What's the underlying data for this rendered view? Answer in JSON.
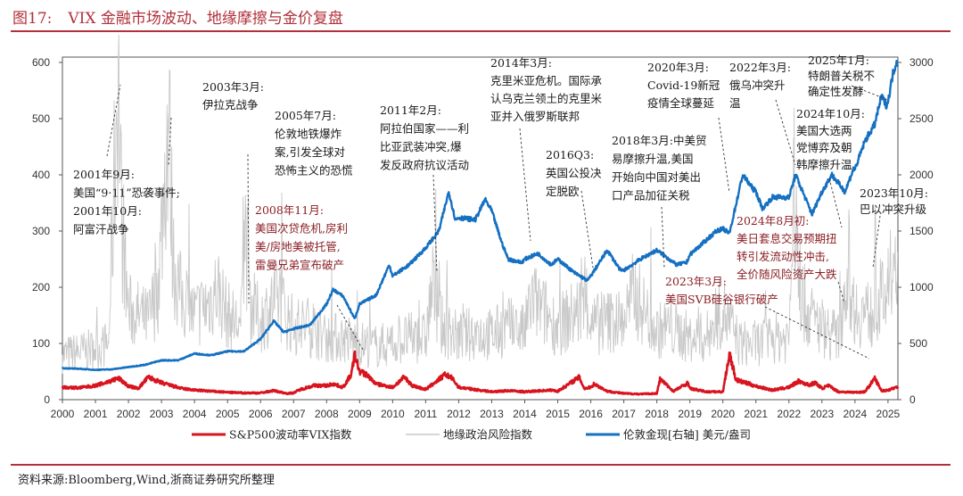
{
  "figure": {
    "label": "图17:",
    "title": "VIX 金融市场波动、地缘摩擦与金价复盘",
    "source": "资料来源:Bloomberg,Wind,浙商证券研究所整理"
  },
  "colors": {
    "vix": "#d8141e",
    "gpr": "#c8c8c8",
    "gold": "#1570c1",
    "accent": "#b1303a",
    "annotation_red": "#8b1f25"
  },
  "chart_data": {
    "type": "line",
    "x_range": [
      2000,
      2025.3
    ],
    "x_ticks": [
      "2000",
      "2001",
      "2002",
      "2003",
      "2004",
      "2005",
      "2006",
      "2007",
      "2008",
      "2009",
      "2010",
      "2011",
      "2012",
      "2013",
      "2014",
      "2015",
      "2016",
      "2017",
      "2018",
      "2019",
      "2020",
      "2021",
      "2022",
      "2023",
      "2024",
      "2025"
    ],
    "y_left": {
      "range": [
        0,
        600
      ],
      "ticks": [
        "0",
        "100",
        "200",
        "300",
        "400",
        "500",
        "600"
      ]
    },
    "y_right": {
      "range": [
        0,
        3000
      ],
      "ticks": [
        "0",
        "500",
        "1000",
        "1500",
        "2000",
        "2500",
        "3000"
      ]
    },
    "legend": {
      "placement": "bottom",
      "entries": [
        "S&P500波动率VIX指数",
        "地缘政治风险指数",
        "伦敦金现[右轴] 美元/盎司"
      ]
    },
    "series": [
      {
        "name": "S&P500波动率VIX指数",
        "axis": "left",
        "points": [
          [
            2000,
            22
          ],
          [
            2000.5,
            21
          ],
          [
            2001,
            25
          ],
          [
            2001.3,
            30
          ],
          [
            2001.7,
            38
          ],
          [
            2002,
            24
          ],
          [
            2002.3,
            20
          ],
          [
            2002.6,
            40
          ],
          [
            2002.8,
            35
          ],
          [
            2003,
            30
          ],
          [
            2003.3,
            25
          ],
          [
            2003.6,
            20
          ],
          [
            2004,
            17
          ],
          [
            2004.5,
            15
          ],
          [
            2005,
            13
          ],
          [
            2005.5,
            12
          ],
          [
            2006,
            12
          ],
          [
            2006.4,
            16
          ],
          [
            2006.8,
            11
          ],
          [
            2007,
            12
          ],
          [
            2007.2,
            18
          ],
          [
            2007.6,
            25
          ],
          [
            2008,
            25
          ],
          [
            2008.2,
            28
          ],
          [
            2008.5,
            22
          ],
          [
            2008.75,
            45
          ],
          [
            2008.85,
            80
          ],
          [
            2009,
            50
          ],
          [
            2009.2,
            45
          ],
          [
            2009.5,
            28
          ],
          [
            2010,
            22
          ],
          [
            2010.35,
            40
          ],
          [
            2010.6,
            25
          ],
          [
            2011,
            18
          ],
          [
            2011.6,
            45
          ],
          [
            2011.8,
            38
          ],
          [
            2012,
            22
          ],
          [
            2012.5,
            18
          ],
          [
            2013,
            14
          ],
          [
            2013.5,
            16
          ],
          [
            2014,
            14
          ],
          [
            2014.8,
            17
          ],
          [
            2015,
            15
          ],
          [
            2015.65,
            40
          ],
          [
            2015.8,
            20
          ],
          [
            2016,
            22
          ],
          [
            2016.1,
            28
          ],
          [
            2016.5,
            15
          ],
          [
            2017,
            11
          ],
          [
            2017.5,
            10
          ],
          [
            2018,
            11
          ],
          [
            2018.1,
            37
          ],
          [
            2018.5,
            15
          ],
          [
            2018.95,
            30
          ],
          [
            2019,
            20
          ],
          [
            2019.5,
            14
          ],
          [
            2020,
            14
          ],
          [
            2020.2,
            82
          ],
          [
            2020.4,
            35
          ],
          [
            2020.8,
            28
          ],
          [
            2021,
            24
          ],
          [
            2021.5,
            17
          ],
          [
            2022,
            22
          ],
          [
            2022.3,
            33
          ],
          [
            2022.6,
            26
          ],
          [
            2022.8,
            30
          ],
          [
            2023,
            20
          ],
          [
            2023.2,
            25
          ],
          [
            2023.5,
            14
          ],
          [
            2024,
            13
          ],
          [
            2024.3,
            14
          ],
          [
            2024.6,
            38
          ],
          [
            2024.8,
            16
          ],
          [
            2025,
            17
          ],
          [
            2025.25,
            22
          ]
        ]
      },
      {
        "name": "地缘政治风险指数",
        "axis": "left",
        "points": [
          [
            2000,
            80
          ],
          [
            2000.5,
            85
          ],
          [
            2001,
            90
          ],
          [
            2001.4,
            100
          ],
          [
            2001.69,
            600
          ],
          [
            2001.8,
            300
          ],
          [
            2002,
            160
          ],
          [
            2002.3,
            150
          ],
          [
            2002.6,
            140
          ],
          [
            2002.9,
            200
          ],
          [
            2003.1,
            400
          ],
          [
            2003.22,
            510
          ],
          [
            2003.35,
            250
          ],
          [
            2003.6,
            180
          ],
          [
            2004,
            150
          ],
          [
            2004.4,
            170
          ],
          [
            2004.7,
            200
          ],
          [
            2005,
            150
          ],
          [
            2005.4,
            130
          ],
          [
            2005.53,
            310
          ],
          [
            2005.7,
            170
          ],
          [
            2006,
            140
          ],
          [
            2006.5,
            180
          ],
          [
            2007,
            130
          ],
          [
            2007.5,
            130
          ],
          [
            2008,
            110
          ],
          [
            2008.5,
            110
          ],
          [
            2009,
            100
          ],
          [
            2009.5,
            95
          ],
          [
            2010,
            100
          ],
          [
            2010.5,
            110
          ],
          [
            2011,
            110
          ],
          [
            2011.2,
            200
          ],
          [
            2011.5,
            130
          ],
          [
            2012,
            110
          ],
          [
            2012.5,
            120
          ],
          [
            2013,
            115
          ],
          [
            2013.5,
            130
          ],
          [
            2014,
            120
          ],
          [
            2014.2,
            180
          ],
          [
            2014.5,
            160
          ],
          [
            2015,
            130
          ],
          [
            2015.9,
            170
          ],
          [
            2016,
            130
          ],
          [
            2016.5,
            140
          ],
          [
            2017,
            140
          ],
          [
            2017.3,
            190
          ],
          [
            2017.7,
            150
          ],
          [
            2018,
            120
          ],
          [
            2018.3,
            130
          ],
          [
            2019,
            110
          ],
          [
            2019.5,
            110
          ],
          [
            2020,
            160
          ],
          [
            2020.5,
            100
          ],
          [
            2021,
            100
          ],
          [
            2021.5,
            110
          ],
          [
            2022,
            110
          ],
          [
            2022.15,
            380
          ],
          [
            2022.3,
            200
          ],
          [
            2022.6,
            150
          ],
          [
            2023,
            130
          ],
          [
            2023.5,
            110
          ],
          [
            2023.8,
            250
          ],
          [
            2023.9,
            180
          ],
          [
            2024,
            160
          ],
          [
            2024.5,
            150
          ],
          [
            2024.8,
            180
          ],
          [
            2025,
            190
          ],
          [
            2025.25,
            210
          ]
        ]
      },
      {
        "name": "伦敦金现[右轴] 美元/盎司",
        "axis": "right",
        "points": [
          [
            2000,
            280
          ],
          [
            2000.5,
            275
          ],
          [
            2001,
            265
          ],
          [
            2001.5,
            270
          ],
          [
            2002,
            290
          ],
          [
            2002.5,
            310
          ],
          [
            2003,
            350
          ],
          [
            2003.5,
            350
          ],
          [
            2004,
            410
          ],
          [
            2004.5,
            395
          ],
          [
            2005,
            430
          ],
          [
            2005.5,
            430
          ],
          [
            2006,
            540
          ],
          [
            2006.4,
            700
          ],
          [
            2006.7,
            600
          ],
          [
            2007,
            630
          ],
          [
            2007.5,
            665
          ],
          [
            2008,
            850
          ],
          [
            2008.2,
            980
          ],
          [
            2008.5,
            920
          ],
          [
            2008.85,
            720
          ],
          [
            2009,
            850
          ],
          [
            2009.5,
            930
          ],
          [
            2009.9,
            1200
          ],
          [
            2010,
            1100
          ],
          [
            2010.5,
            1200
          ],
          [
            2011,
            1350
          ],
          [
            2011.4,
            1500
          ],
          [
            2011.7,
            1850
          ],
          [
            2011.9,
            1600
          ],
          [
            2012,
            1620
          ],
          [
            2012.5,
            1600
          ],
          [
            2012.8,
            1780
          ],
          [
            2013,
            1680
          ],
          [
            2013.3,
            1400
          ],
          [
            2013.5,
            1250
          ],
          [
            2013.9,
            1220
          ],
          [
            2014,
            1250
          ],
          [
            2014.4,
            1300
          ],
          [
            2014.8,
            1200
          ],
          [
            2015,
            1250
          ],
          [
            2015.5,
            1130
          ],
          [
            2015.9,
            1060
          ],
          [
            2016,
            1100
          ],
          [
            2016.5,
            1330
          ],
          [
            2016.9,
            1150
          ],
          [
            2017,
            1150
          ],
          [
            2017.5,
            1250
          ],
          [
            2018,
            1330
          ],
          [
            2018.6,
            1200
          ],
          [
            2018.9,
            1220
          ],
          [
            2019,
            1290
          ],
          [
            2019.5,
            1420
          ],
          [
            2019.8,
            1500
          ],
          [
            2020,
            1520
          ],
          [
            2020.2,
            1480
          ],
          [
            2020.6,
            2000
          ],
          [
            2020.9,
            1880
          ],
          [
            2021,
            1850
          ],
          [
            2021.2,
            1700
          ],
          [
            2021.5,
            1800
          ],
          [
            2022,
            1800
          ],
          [
            2022.2,
            2000
          ],
          [
            2022.7,
            1650
          ],
          [
            2023,
            1850
          ],
          [
            2023.3,
            2000
          ],
          [
            2023.7,
            1850
          ],
          [
            2023.95,
            2050
          ],
          [
            2024,
            2050
          ],
          [
            2024.3,
            2300
          ],
          [
            2024.6,
            2450
          ],
          [
            2024.8,
            2700
          ],
          [
            2024.95,
            2620
          ],
          [
            2025,
            2650
          ],
          [
            2025.15,
            2900
          ],
          [
            2025.25,
            3000
          ]
        ]
      }
    ],
    "annotations": [
      {
        "id": "a2001",
        "color": "black",
        "lines": [
          "2001年9月:",
          "美国“9·11”恐袭事件;",
          "2001年10月:",
          "阿富汗战争"
        ]
      },
      {
        "id": "a2003",
        "color": "black",
        "lines": [
          "2003年3月:",
          "伊拉克战争"
        ]
      },
      {
        "id": "a2005",
        "color": "black",
        "lines": [
          "2005年7月:",
          "伦敦地铁爆炸",
          "案,引发全球对",
          "恐怖主义的恐慌"
        ]
      },
      {
        "id": "a2008",
        "color": "red",
        "lines": [
          "2008年11月:",
          "美国次贷危机,房利",
          "美/房地美被托管,",
          "雷曼兄弟宣布破产"
        ]
      },
      {
        "id": "a2011",
        "color": "black",
        "lines": [
          "2011年2月:",
          "阿拉伯国家——利",
          "比亚武装冲突,爆",
          "发反政府抗议活动"
        ]
      },
      {
        "id": "a2014",
        "color": "black",
        "lines": [
          "2014年3月:",
          "克里米亚危机。国际承",
          "认乌克兰领土的克里米",
          "亚并入俄罗斯联邦"
        ]
      },
      {
        "id": "a2016",
        "color": "black",
        "lines": [
          "2016Q3:",
          "英国公投决",
          "定脱欧"
        ]
      },
      {
        "id": "a2018",
        "color": "black",
        "lines": [
          "2018年3月:中美贸",
          "易摩擦升温,美国",
          "开始向中国对美出",
          "口产品加征关税"
        ]
      },
      {
        "id": "a2020",
        "color": "black",
        "lines": [
          "2020年3月:",
          "Covid-19新冠",
          "疫情全球蔓延"
        ]
      },
      {
        "id": "a2022",
        "color": "black",
        "lines": [
          "2022年3月:",
          "俄乌冲突升",
          "温"
        ]
      },
      {
        "id": "a2025",
        "color": "black",
        "lines": [
          "2025年1月:",
          "特朗普关税不",
          "确定性发酵"
        ]
      },
      {
        "id": "a2024oct",
        "color": "black",
        "lines": [
          "2024年10月:",
          "美国大选两",
          "党博弈及朝",
          "韩摩擦升温"
        ]
      },
      {
        "id": "a2023oct",
        "color": "black",
        "lines": [
          "2023年10月:",
          "巴以冲突升级"
        ]
      },
      {
        "id": "a2024aug",
        "color": "red",
        "lines": [
          "2024年8月初:",
          "美日套息交易预期扭",
          "转引发流动性冲击,",
          "全价随风险资产大跌"
        ]
      },
      {
        "id": "a2023mar",
        "color": "red",
        "lines": [
          "2023年3月:",
          "美国SVB硅谷银行破产"
        ]
      }
    ]
  }
}
